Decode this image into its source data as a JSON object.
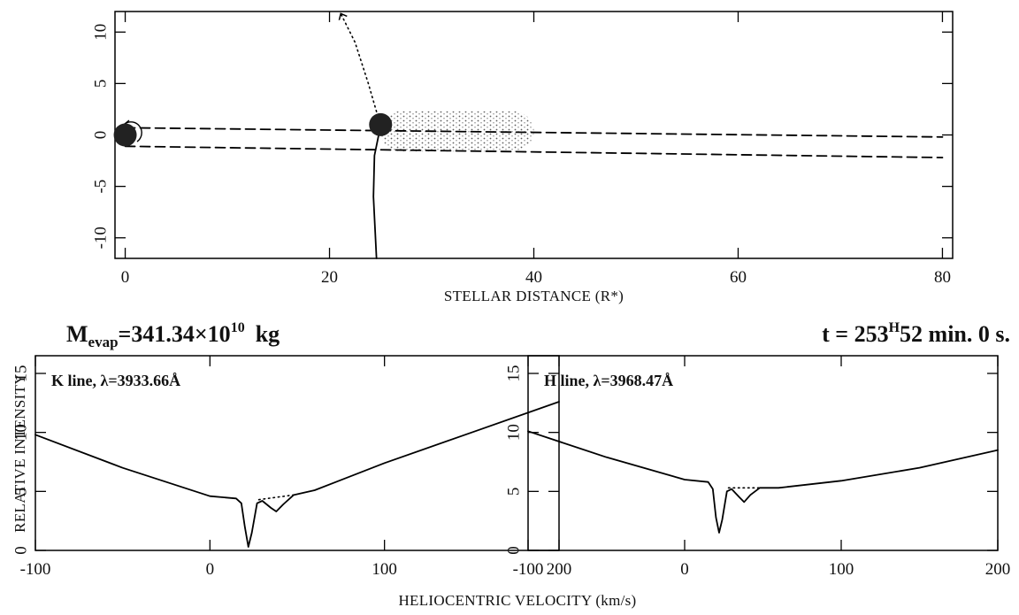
{
  "figure": {
    "mass_label": {
      "symbol": "M",
      "subscript": "evap",
      "text": "=341.34×10",
      "exponent": "10",
      "unit": "kg"
    },
    "time_label": {
      "text": "t = 253",
      "superscript": "H",
      "rest": "52 min. 0 s."
    },
    "y_label": "RELATIVE INTENSITY",
    "x_label": "HELIOCENTRIC VELOCITY (km/s)"
  },
  "chart_data": [
    {
      "type": "line",
      "x_label": "STELLAR DISTANCE (R*)",
      "xlim": [
        -1,
        81
      ],
      "ylim": [
        -12,
        12
      ],
      "xticks": [
        0,
        20,
        40,
        60,
        80
      ],
      "yticks": [
        -10,
        -5,
        0,
        5,
        10
      ],
      "cloud": {
        "xlim": [
          25,
          40
        ],
        "ylim": [
          -1.6,
          2.3
        ]
      },
      "series": [
        {
          "style": "dashed",
          "color": "#000000",
          "x": [
            0,
            80
          ],
          "values": [
            0.7,
            -0.2
          ]
        },
        {
          "style": "dashed",
          "color": "#000000",
          "x": [
            0,
            80
          ],
          "values": [
            -1.1,
            -2.2
          ]
        },
        {
          "style": "solid",
          "color": "#000000",
          "x": [
            24.6,
            24.3,
            24.4,
            25
          ],
          "values": [
            -12,
            -6,
            -2,
            0.9
          ]
        },
        {
          "style": "dotted",
          "color": "#000000",
          "x": [
            25,
            23.8,
            22.5,
            21.1
          ],
          "values": [
            0.9,
            5,
            9,
            11.8
          ]
        },
        {
          "style": "marker",
          "color": "#222222",
          "x": [
            0,
            25
          ],
          "values": [
            0,
            1
          ]
        }
      ]
    },
    {
      "type": "line",
      "annotation": "K line, λ=3933.66Å",
      "xlim": [
        -100,
        200
      ],
      "ylim": [
        0,
        16.5
      ],
      "xticks": [
        -100,
        0,
        100,
        200
      ],
      "yticks": [
        0,
        5,
        10,
        15
      ],
      "series": [
        {
          "style": "solid",
          "color": "#000000",
          "x": [
            -100,
            -50,
            0,
            15,
            18,
            20,
            22,
            24,
            27,
            30,
            35,
            38,
            42,
            48,
            60,
            100,
            150,
            200
          ],
          "values": [
            9.8,
            7.0,
            4.6,
            4.4,
            4.0,
            2.0,
            0.3,
            1.5,
            4.0,
            4.2,
            3.6,
            3.3,
            3.9,
            4.7,
            5.1,
            7.4,
            10.0,
            12.6
          ]
        },
        {
          "style": "dotted",
          "color": "#000000",
          "x": [
            28,
            48
          ],
          "values": [
            4.3,
            4.7
          ]
        }
      ]
    },
    {
      "type": "line",
      "annotation": "H line, λ=3968.47Å",
      "xlim": [
        -100,
        200
      ],
      "ylim": [
        0,
        16.5
      ],
      "xticks": [
        -100,
        0,
        100,
        200
      ],
      "yticks": [
        0,
        5,
        10,
        15
      ],
      "series": [
        {
          "style": "solid",
          "color": "#000000",
          "x": [
            -100,
            -50,
            0,
            15,
            18,
            20,
            22,
            24,
            27,
            30,
            35,
            38,
            42,
            48,
            60,
            100,
            150,
            200
          ],
          "values": [
            10.1,
            7.9,
            6.0,
            5.8,
            5.2,
            2.8,
            1.5,
            2.6,
            5.0,
            5.2,
            4.5,
            4.1,
            4.7,
            5.3,
            5.3,
            5.9,
            7.0,
            8.5
          ]
        },
        {
          "style": "dotted",
          "color": "#000000",
          "x": [
            28,
            48
          ],
          "values": [
            5.3,
            5.3
          ]
        }
      ]
    }
  ]
}
